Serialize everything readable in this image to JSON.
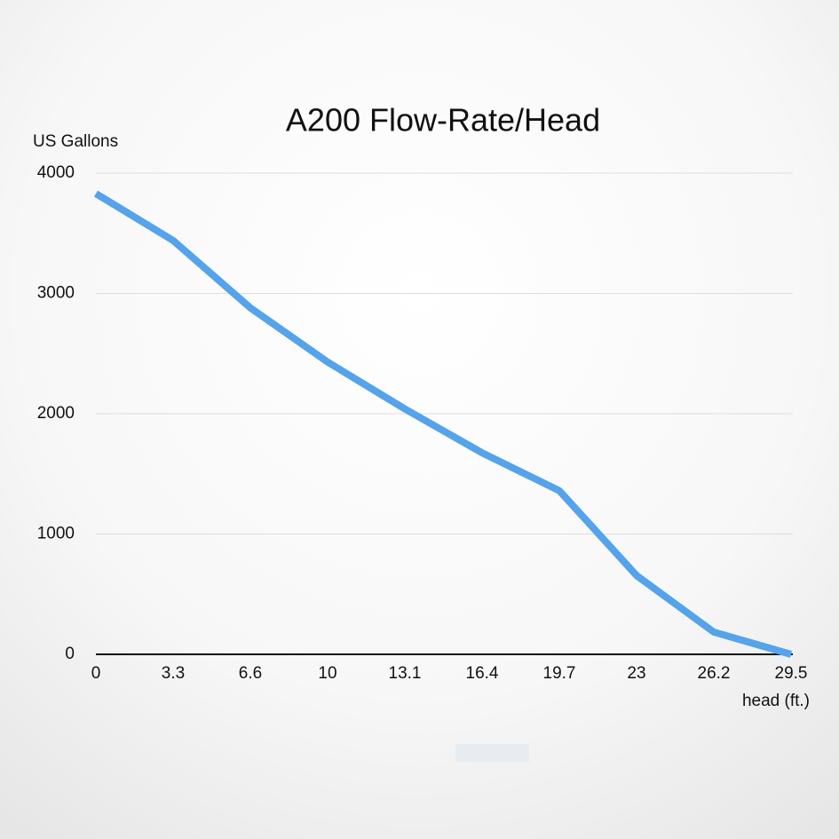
{
  "chart_data": {
    "type": "line",
    "title": "A200 Flow-Rate/Head",
    "y_label": "US Gallons",
    "x_label": "head (ft.)",
    "categories": [
      "0",
      "3.3",
      "6.6",
      "10",
      "13.1",
      "16.4",
      "19.7",
      "23",
      "26.2",
      "29.5"
    ],
    "values": [
      3830,
      3440,
      2880,
      2430,
      2040,
      1675,
      1360,
      655,
      185,
      0
    ],
    "color": "#55a3ea",
    "ylim": [
      0,
      4000
    ],
    "yticks": [
      0,
      1000,
      2000,
      3000,
      4000
    ],
    "grid": true
  }
}
